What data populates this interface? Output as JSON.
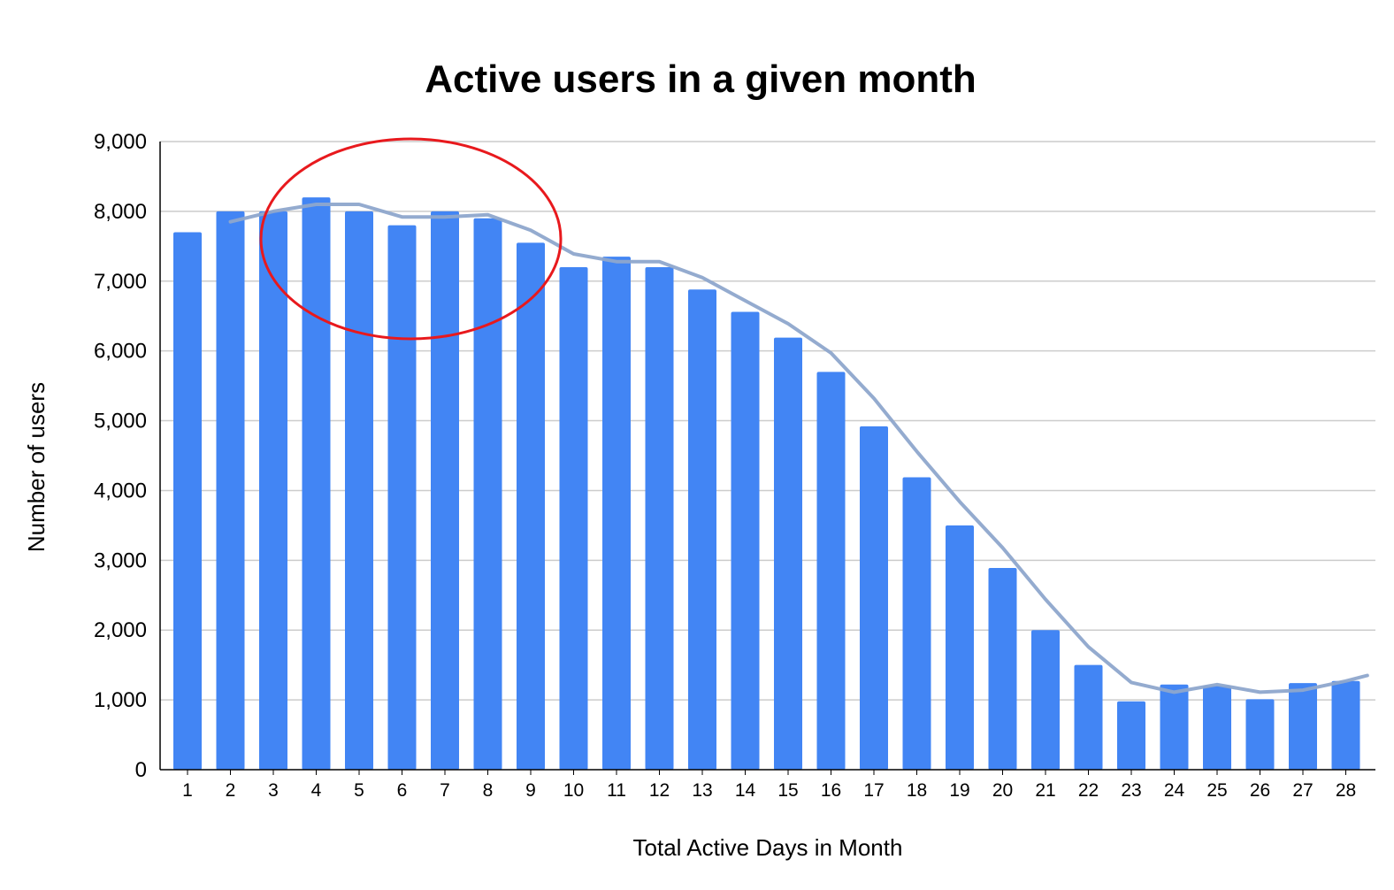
{
  "chart_data": {
    "type": "bar",
    "title": "Active users in a given month",
    "xlabel": "Total Active Days in Month",
    "ylabel": "Number of users",
    "ylim": [
      0,
      9000
    ],
    "yticks": [
      0,
      1000,
      2000,
      3000,
      4000,
      5000,
      6000,
      7000,
      8000,
      9000
    ],
    "ytick_labels": [
      "0",
      "1,000",
      "2,000",
      "3,000",
      "4,000",
      "5,000",
      "6,000",
      "7,000",
      "8,000",
      "9,000"
    ],
    "categories": [
      "1",
      "2",
      "3",
      "4",
      "5",
      "6",
      "7",
      "8",
      "9",
      "10",
      "11",
      "12",
      "13",
      "14",
      "15",
      "16",
      "17",
      "18",
      "19",
      "20",
      "21",
      "22",
      "23",
      "24",
      "25",
      "26",
      "27",
      "28"
    ],
    "values": [
      7700,
      8000,
      8000,
      8200,
      8000,
      7800,
      8000,
      7900,
      7550,
      7200,
      7350,
      7200,
      6880,
      6560,
      6190,
      5700,
      4920,
      4190,
      3500,
      2890,
      2000,
      1500,
      980,
      1220,
      1200,
      1010,
      1240,
      1270
    ],
    "trendline": {
      "x": [
        2,
        3,
        4,
        5,
        6,
        7,
        8,
        9,
        10,
        11,
        12,
        13,
        14,
        15,
        16,
        17,
        18,
        19,
        20,
        21,
        22,
        23,
        24,
        25,
        26,
        27,
        28,
        28.5
      ],
      "y": [
        7850,
        8000,
        8100,
        8100,
        7920,
        7920,
        7950,
        7730,
        7390,
        7280,
        7280,
        7050,
        6720,
        6390,
        5970,
        5320,
        4560,
        3840,
        3180,
        2440,
        1760,
        1250,
        1110,
        1220,
        1110,
        1140,
        1270,
        1350
      ]
    },
    "bar_color": "#4285f4",
    "trend_color": "#8ea6cc",
    "grid": true,
    "annotation": {
      "shape": "circle",
      "color": "#e8191d",
      "around_categories": [
        "3",
        "9"
      ]
    }
  }
}
